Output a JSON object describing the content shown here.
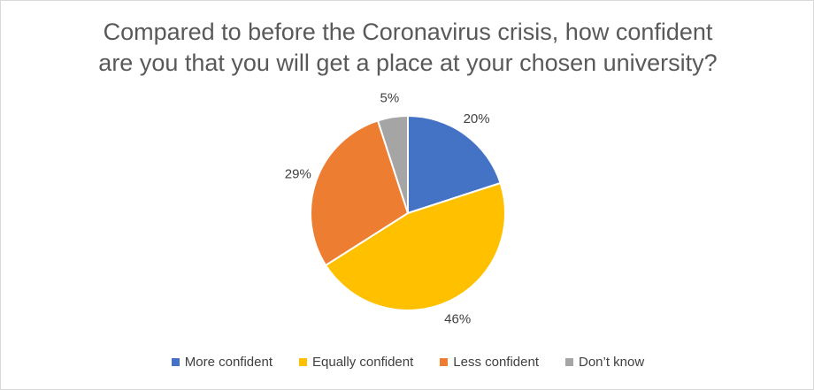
{
  "chart_data": {
    "type": "pie",
    "title_lines": [
      "Compared to before the Coronavirus crisis, how confident",
      "are you that you will get a place at your chosen university?"
    ],
    "categories": [
      "More confident",
      "Equally confident",
      "Less confident",
      "Don’t know"
    ],
    "values": [
      20,
      46,
      29,
      5
    ],
    "data_labels": [
      "20%",
      "46%",
      "29%",
      "5%"
    ],
    "colors": [
      "#4472C4",
      "#FFC000",
      "#ED7D31",
      "#A5A5A5"
    ],
    "legend_position": "bottom"
  }
}
